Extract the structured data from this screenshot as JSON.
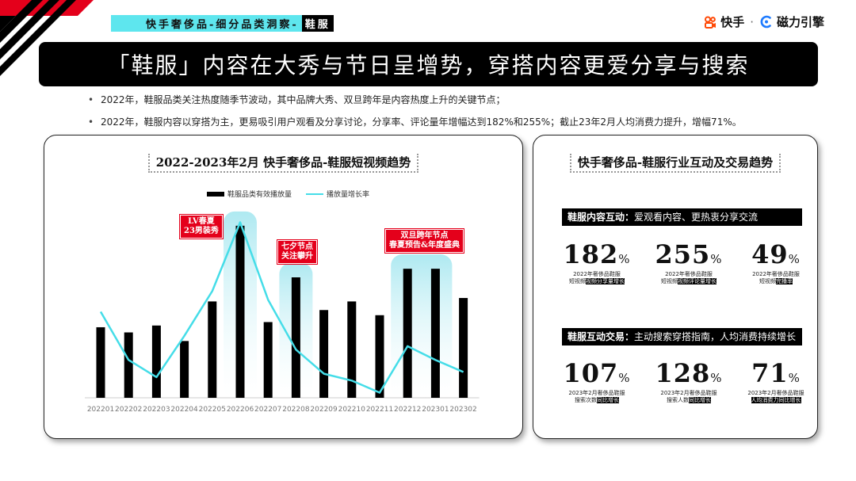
{
  "header": {
    "breadcrumb": "快手奢侈品-细分品类洞察-",
    "breadcrumb_highlight": "鞋服",
    "brand_kuaishou": "快手",
    "brand_sep": "·",
    "brand_cili": "磁力引擎"
  },
  "headline": "「鞋服」内容在大秀与节日呈增势，穿搭内容更爱分享与搜索",
  "bullets": [
    "2022年，鞋服品类关注热度随季节波动，其中品牌大秀、双旦跨年是内容热度上升的关键节点；",
    "2022年，鞋服内容以穿搭为主，更易吸引用户观看及分享讨论，分享率、评论量年增幅达到182%和255%；截止23年2月人均消费力提升，增幅71%。"
  ],
  "left_card": {
    "title": "2022-2023年2月 快手奢侈品-鞋服短视频趋势",
    "callouts": [
      "LV春夏\n23男装秀",
      "七夕节点\n关注攀升",
      "双旦跨年节点\n春夏预告&年度盛典"
    ]
  },
  "chart_data": {
    "type": "bar",
    "title": "2022-2023年2月 快手奢侈品-鞋服短视频趋势",
    "categories": [
      "202201",
      "202202",
      "202203",
      "202204",
      "202205",
      "202206",
      "202207",
      "202208",
      "202209",
      "202210",
      "202211",
      "202212",
      "202301",
      "202302"
    ],
    "series": [
      {
        "name": "鞋服品类有效播放量",
        "type": "bar",
        "values": [
          41,
          38,
          42,
          33,
          56,
          100,
          44,
          70,
          51,
          56,
          48,
          75,
          75,
          58
        ]
      },
      {
        "name": "播放量增长率",
        "type": "line",
        "values": [
          50,
          22,
          12,
          36,
          62,
          102,
          57,
          28,
          14,
          10,
          3,
          30,
          22,
          15
        ]
      }
    ],
    "ylim": [
      0,
      105
    ],
    "legend": "top-center",
    "grid": false,
    "highlights": [
      "202206",
      "202208",
      "202212-202301"
    ]
  },
  "right_card": {
    "title": "快手奢侈品-鞋服行业互动及交易趋势",
    "section1": {
      "label": "鞋服内容互动：",
      "sub": "爱观看内容、更热衷分享交流",
      "stats": [
        {
          "value": "182",
          "unit": "%",
          "desc_plain": "2022年奢侈品鞋服",
          "desc_line2": "短视频",
          "desc_hl": "视频分享量增长"
        },
        {
          "value": "255",
          "unit": "%",
          "desc_plain": "2022年奢侈品鞋服",
          "desc_line2": "短视频",
          "desc_hl": "视频评论量增长"
        },
        {
          "value": "49",
          "unit": "%",
          "desc_plain": "2022年奢侈品鞋服",
          "desc_line2": "短视频",
          "desc_hl": "完播率"
        }
      ]
    },
    "section2": {
      "label": "鞋服互动交易：",
      "sub": "主动搜索穿搭指南，人均消费持续增长",
      "stats": [
        {
          "value": "107",
          "unit": "%",
          "desc_plain": "2023年2月奢侈品鞋服",
          "desc_line2": "搜索次数",
          "desc_hl": "同比增长"
        },
        {
          "value": "128",
          "unit": "%",
          "desc_plain": "2023年2月奢侈品鞋服",
          "desc_line2": "搜索人数",
          "desc_hl": "同比增长"
        },
        {
          "value": "71",
          "unit": "%",
          "desc_plain": "2023年2月奢侈品鞋服",
          "desc_line2": "",
          "desc_hl": "人均消费力同比增长"
        }
      ]
    }
  },
  "colors": {
    "accent_cyan": "#45dde8",
    "highlight_red": "#e4001b",
    "bar_black": "#000000",
    "kuaishou_orange": "#ff4906",
    "cili_blue": "#1e7bff"
  }
}
